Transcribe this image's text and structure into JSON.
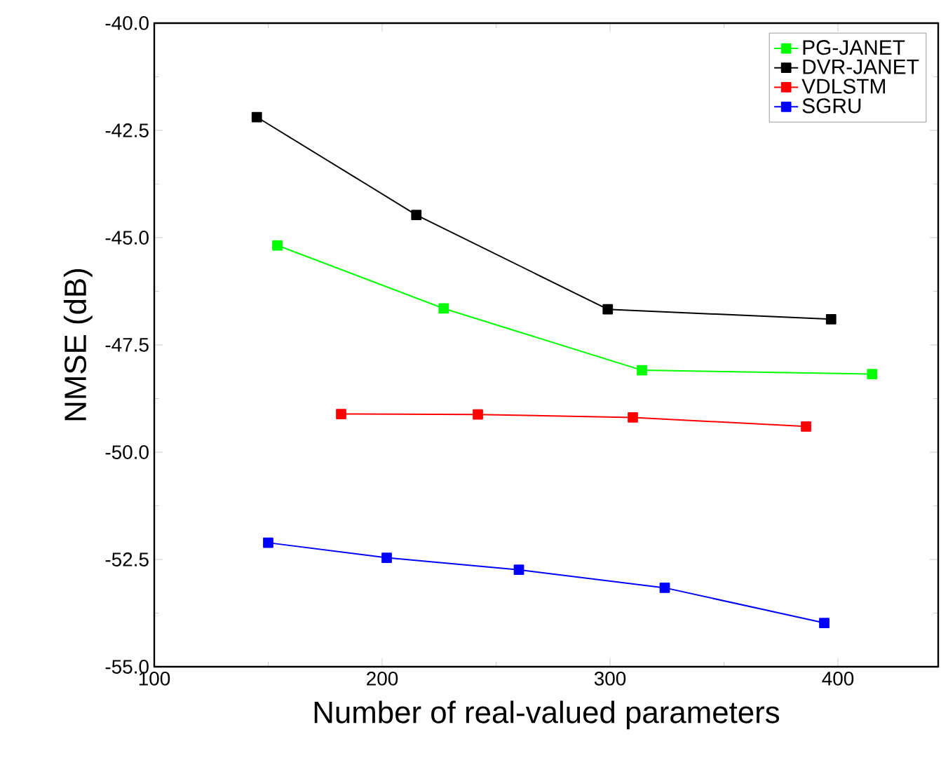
{
  "chart_data": {
    "type": "line",
    "xlabel": "Number of real-valued parameters",
    "ylabel": "NMSE (dB)",
    "xlim": [
      100,
      444
    ],
    "xticks": [
      100,
      200,
      300,
      400
    ],
    "ylim": [
      -55,
      -40
    ],
    "yticks": [
      {
        "value": -55,
        "label": "-55.0"
      },
      {
        "value": -52.5,
        "label": "-52.5"
      },
      {
        "value": -50,
        "label": "-50.0"
      },
      {
        "value": -47.5,
        "label": "-47.5"
      },
      {
        "value": -45,
        "label": "-45.0"
      },
      {
        "value": -42.5,
        "label": "-42.5"
      },
      {
        "value": -40,
        "label": "-40.0"
      }
    ],
    "grid": false,
    "legend": "top right",
    "marker": "square",
    "line_style": "solid",
    "series": [
      {
        "name": "PG-JANET",
        "color": "#00ff00",
        "x": [
          154,
          227,
          314,
          415
        ],
        "values": [
          -45.18,
          -46.65,
          -48.09,
          -48.18
        ]
      },
      {
        "name": "DVR-JANET",
        "color": "#000000",
        "x": [
          145,
          215,
          299,
          397
        ],
        "values": [
          -42.19,
          -44.47,
          -46.67,
          -46.9
        ]
      },
      {
        "name": "VDLSTM",
        "color": "#ff0000",
        "x": [
          182,
          242,
          310,
          386
        ],
        "values": [
          -49.11,
          -49.12,
          -49.19,
          -49.4
        ]
      },
      {
        "name": "SGRU",
        "color": "#0000ff",
        "x": [
          150,
          202,
          260,
          324,
          394
        ],
        "values": [
          -52.11,
          -52.46,
          -52.74,
          -53.16,
          -53.98
        ]
      }
    ]
  }
}
